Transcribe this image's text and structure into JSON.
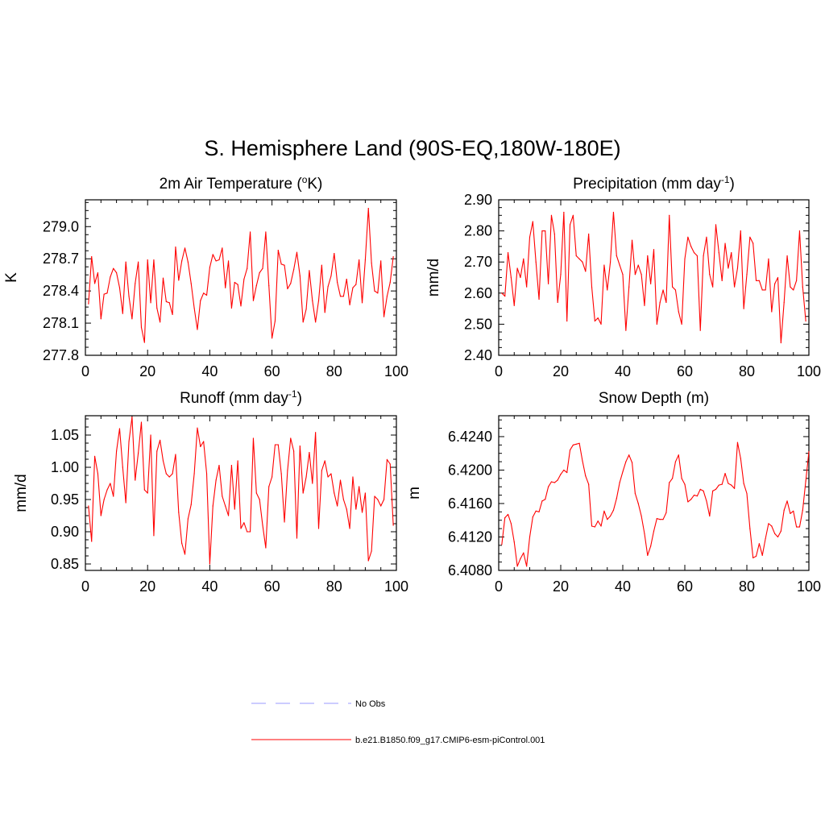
{
  "title": "S. Hemisphere Land (90S-EQ,180W-180E)",
  "colors": {
    "model": "#ff0000",
    "obs": "#9999ff",
    "axis": "#000000"
  },
  "legend": [
    {
      "label": "No Obs",
      "style": "dashed",
      "color": "#9999ff"
    },
    {
      "label": "b.e21.B1850.f09_g17.CMIP6-esm-piControl.001",
      "style": "solid",
      "color": "#ff0000"
    }
  ],
  "chart_data": [
    {
      "type": "line",
      "title": "2m Air Temperature (",
      "title_sup": "o",
      "title_tail": "K)",
      "ylabel": "K",
      "xlabel": "",
      "xlim": [
        0,
        100
      ],
      "ylim": [
        277.8,
        279.25
      ],
      "xticks": [
        "0",
        "20",
        "40",
        "60",
        "80",
        "100"
      ],
      "yticks": [
        "277.8",
        "278.1",
        "278.4",
        "278.7",
        "279.0"
      ],
      "series": [
        {
          "name": "b.e21.B1850.f09_g17.CMIP6-esm-piControl.001",
          "x_start": 1,
          "x_step": 1,
          "values": [
            278.28,
            278.72,
            278.47,
            278.57,
            278.14,
            278.37,
            278.38,
            278.53,
            278.61,
            278.57,
            278.43,
            278.19,
            278.67,
            278.35,
            278.14,
            278.47,
            278.67,
            278.06,
            277.92,
            278.69,
            278.29,
            278.69,
            278.24,
            278.11,
            278.52,
            278.3,
            278.29,
            278.18,
            278.81,
            278.5,
            278.68,
            278.8,
            278.67,
            278.47,
            278.24,
            278.04,
            278.31,
            278.38,
            278.36,
            278.62,
            278.74,
            278.68,
            278.69,
            278.8,
            278.43,
            278.68,
            278.24,
            278.48,
            278.46,
            278.26,
            278.51,
            278.61,
            278.95,
            278.31,
            278.45,
            278.57,
            278.61,
            278.95,
            278.45,
            277.96,
            278.12,
            278.78,
            278.65,
            278.64,
            278.42,
            278.47,
            278.6,
            278.76,
            278.54,
            278.11,
            278.23,
            278.59,
            278.31,
            278.11,
            278.31,
            278.64,
            278.2,
            278.44,
            278.54,
            278.75,
            278.48,
            278.35,
            278.35,
            278.51,
            278.27,
            278.43,
            278.46,
            278.69,
            278.29,
            278.69,
            279.17,
            278.66,
            278.4,
            278.38,
            278.68,
            278.16,
            278.35,
            278.48,
            278.72
          ]
        }
      ]
    },
    {
      "type": "line",
      "title": "Precipitation (mm day",
      "title_sup": "-1",
      "title_tail": ")",
      "ylabel": "mm/d",
      "xlabel": "",
      "xlim": [
        0,
        100
      ],
      "ylim": [
        2.4,
        2.9
      ],
      "xticks": [
        "0",
        "20",
        "40",
        "60",
        "80",
        "100"
      ],
      "yticks": [
        "2.40",
        "2.50",
        "2.60",
        "2.70",
        "2.80",
        "2.90"
      ],
      "series": [
        {
          "name": "b.e21.B1850.f09_g17.CMIP6-esm-piControl.001",
          "x_start": 1,
          "x_step": 1,
          "values": [
            2.6,
            2.59,
            2.73,
            2.65,
            2.56,
            2.68,
            2.65,
            2.71,
            2.62,
            2.78,
            2.83,
            2.7,
            2.58,
            2.8,
            2.8,
            2.63,
            2.85,
            2.79,
            2.57,
            2.66,
            2.86,
            2.51,
            2.82,
            2.85,
            2.72,
            2.71,
            2.7,
            2.67,
            2.79,
            2.62,
            2.51,
            2.52,
            2.5,
            2.69,
            2.61,
            2.7,
            2.86,
            2.72,
            2.69,
            2.66,
            2.48,
            2.62,
            2.77,
            2.66,
            2.69,
            2.66,
            2.56,
            2.72,
            2.63,
            2.74,
            2.5,
            2.57,
            2.61,
            2.57,
            2.85,
            2.62,
            2.61,
            2.54,
            2.5,
            2.71,
            2.78,
            2.75,
            2.73,
            2.72,
            2.48,
            2.72,
            2.78,
            2.66,
            2.62,
            2.82,
            2.73,
            2.64,
            2.76,
            2.68,
            2.73,
            2.62,
            2.68,
            2.8,
            2.55,
            2.66,
            2.78,
            2.76,
            2.64,
            2.64,
            2.61,
            2.61,
            2.71,
            2.54,
            2.63,
            2.65,
            2.44,
            2.57,
            2.72,
            2.62,
            2.61,
            2.64,
            2.8,
            2.62,
            2.51
          ]
        }
      ]
    },
    {
      "type": "line",
      "title": "Runoff (mm day",
      "title_sup": "-1",
      "title_tail": ")",
      "ylabel": "mm/d",
      "xlabel": "",
      "xlim": [
        0,
        100
      ],
      "ylim": [
        0.84,
        1.08
      ],
      "xticks": [
        "0",
        "20",
        "40",
        "60",
        "80",
        "100"
      ],
      "yticks": [
        "0.85",
        "0.90",
        "0.95",
        "1.00",
        "1.05"
      ],
      "series": [
        {
          "name": "b.e21.B1850.f09_g17.CMIP6-esm-piControl.001",
          "x_start": 1,
          "x_step": 1,
          "values": [
            0.94,
            0.885,
            1.017,
            0.99,
            0.925,
            0.95,
            0.965,
            0.975,
            0.955,
            1.025,
            1.06,
            1.0,
            0.945,
            1.04,
            1.078,
            0.98,
            1.022,
            1.07,
            0.965,
            0.96,
            1.05,
            0.894,
            1.025,
            1.042,
            1.01,
            0.99,
            0.985,
            0.99,
            1.02,
            0.93,
            0.882,
            0.865,
            0.92,
            0.942,
            0.99,
            1.061,
            1.032,
            1.04,
            0.99,
            0.85,
            0.94,
            0.98,
            1.003,
            0.955,
            0.94,
            0.925,
            1.003,
            0.935,
            1.01,
            0.905,
            0.914,
            0.9,
            0.9,
            1.045,
            0.96,
            0.95,
            0.91,
            0.875,
            0.97,
            0.985,
            1.035,
            1.035,
            0.99,
            0.915,
            0.995,
            1.045,
            1.025,
            0.89,
            1.033,
            0.96,
            0.985,
            1.023,
            0.975,
            1.054,
            0.905,
            0.995,
            1.01,
            0.985,
            0.99,
            0.96,
            0.94,
            0.98,
            0.95,
            0.935,
            0.905,
            0.985,
            0.935,
            0.97,
            0.93,
            0.96,
            0.855,
            0.87,
            0.955,
            0.95,
            0.94,
            0.95,
            1.012,
            1.005,
            0.91
          ]
        }
      ]
    },
    {
      "type": "line",
      "title": "Snow Depth (m)",
      "title_sup": "",
      "title_tail": "",
      "ylabel": "m",
      "xlabel": "",
      "xlim": [
        0,
        100
      ],
      "ylim": [
        6.408,
        6.4265
      ],
      "xticks": [
        "0",
        "20",
        "40",
        "60",
        "80",
        "100"
      ],
      "yticks": [
        "6.4080",
        "6.4120",
        "6.4160",
        "6.4200",
        "6.4240"
      ],
      "series": [
        {
          "name": "b.e21.B1850.f09_g17.CMIP6-esm-piControl.001",
          "x_start": 1,
          "x_step": 1,
          "values": [
            6.4111,
            6.4143,
            6.4147,
            6.4136,
            6.4114,
            6.4085,
            6.4094,
            6.4101,
            6.4085,
            6.412,
            6.4144,
            6.4151,
            6.415,
            6.4163,
            6.4165,
            6.418,
            6.4186,
            6.4185,
            6.4188,
            6.4195,
            6.42,
            6.4197,
            6.4224,
            6.423,
            6.4231,
            6.4232,
            6.4211,
            6.4193,
            6.4183,
            6.4133,
            6.4132,
            6.4139,
            6.4133,
            6.4151,
            6.4141,
            6.4145,
            6.4152,
            6.4166,
            6.4185,
            6.4198,
            6.421,
            6.4218,
            6.4209,
            6.4172,
            6.416,
            6.4145,
            6.4124,
            6.4098,
            6.4109,
            6.4127,
            6.4142,
            6.4141,
            6.4141,
            6.4149,
            6.4185,
            6.419,
            6.421,
            6.4218,
            6.419,
            6.4183,
            6.4162,
            6.4165,
            6.417,
            6.4169,
            6.4177,
            6.4175,
            6.4163,
            6.4145,
            6.4175,
            6.4177,
            6.4182,
            6.4183,
            6.4196,
            6.4184,
            6.4182,
            6.4178,
            6.4233,
            6.4214,
            6.4184,
            6.4172,
            6.413,
            6.4095,
            6.4097,
            6.4112,
            6.4098,
            6.4118,
            6.4136,
            6.4133,
            6.4124,
            6.412,
            6.4127,
            6.4152,
            6.4163,
            6.4148,
            6.4151,
            6.4132,
            6.4132,
            6.4152,
            6.4187,
            6.4222
          ]
        }
      ]
    }
  ]
}
